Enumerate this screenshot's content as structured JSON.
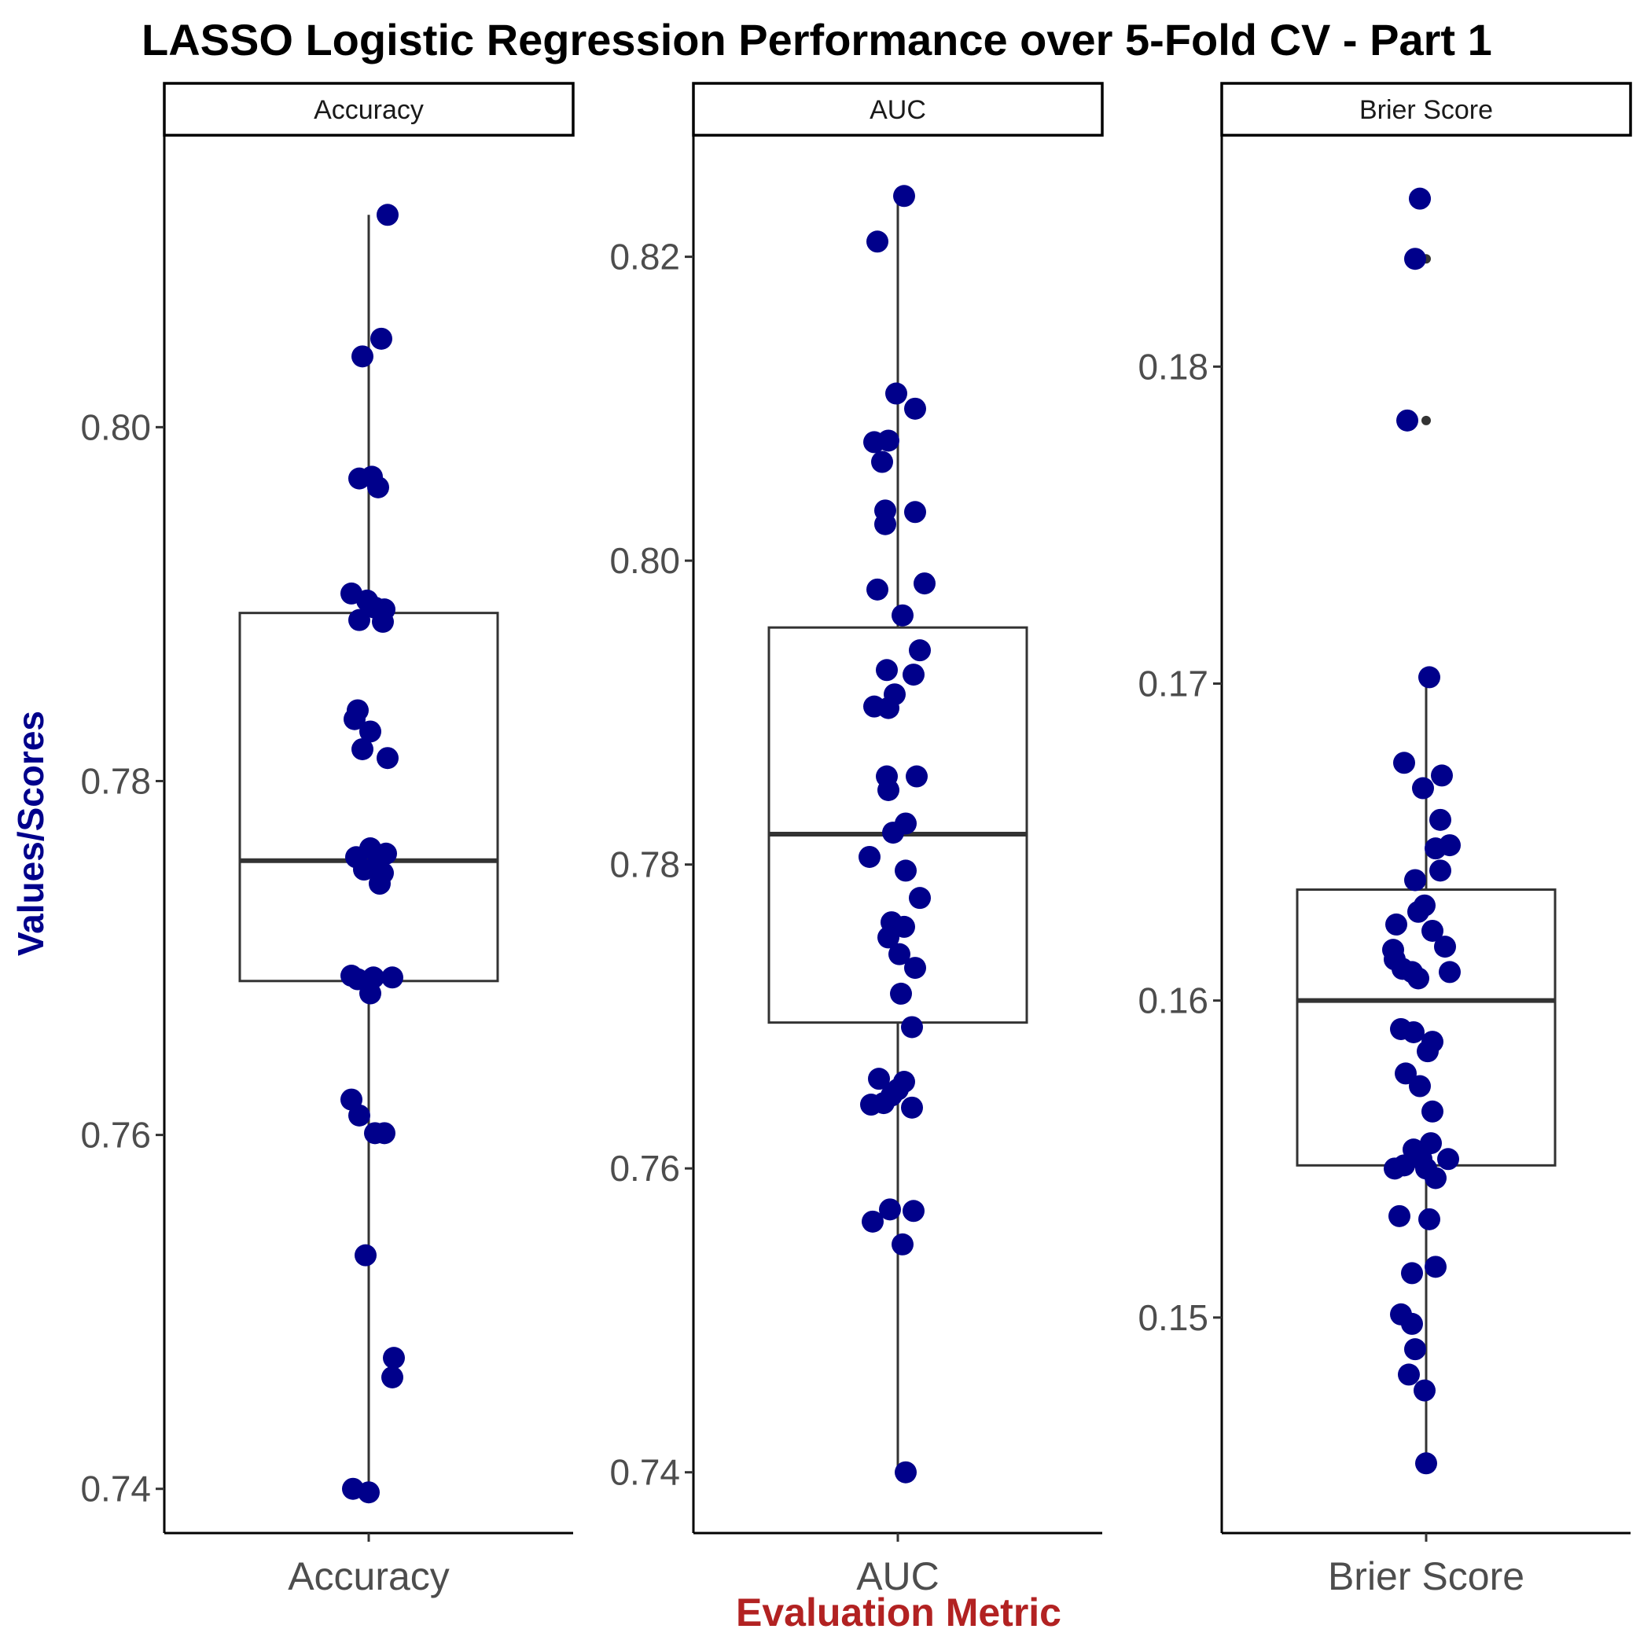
{
  "chart_data": {
    "type": "boxplot",
    "title": "LASSO Logistic Regression Performance over 5-Fold CV - Part 1",
    "xlabel": "Evaluation Metric",
    "ylabel": "Values/Scores",
    "colors": {
      "points": "#00008B",
      "ylabel": "#00008B",
      "xlabel": "#B22222",
      "box": "#333333"
    },
    "grid": false,
    "legend": "none",
    "facets": [
      {
        "label": "Accuracy",
        "xtick": "Accuracy",
        "ylim": [
          0.7375,
          0.8165
        ],
        "yticks": [
          0.74,
          0.76,
          0.78,
          0.8
        ],
        "ytick_labels": [
          "0.74",
          "0.76",
          "0.78",
          "0.80"
        ],
        "box": {
          "q1": 0.7687,
          "median": 0.7755,
          "q3": 0.7895,
          "whisker_low": 0.74,
          "whisker_high": 0.812
        },
        "outliers": [],
        "points": [
          [
            0.012,
            0.812
          ],
          [
            0.008,
            0.805
          ],
          [
            -0.004,
            0.804
          ],
          [
            0.002,
            0.7972
          ],
          [
            -0.006,
            0.7971
          ],
          [
            0.006,
            0.7966
          ],
          [
            -0.011,
            0.7906
          ],
          [
            -0.001,
            0.7902
          ],
          [
            0.004,
            0.7898
          ],
          [
            0.01,
            0.7897
          ],
          [
            -0.006,
            0.7891
          ],
          [
            0.009,
            0.789
          ],
          [
            -0.007,
            0.784
          ],
          [
            -0.009,
            0.7835
          ],
          [
            0.001,
            0.7828
          ],
          [
            -0.004,
            0.7818
          ],
          [
            0.012,
            0.7813
          ],
          [
            0.001,
            0.7762
          ],
          [
            -0.008,
            0.7757
          ],
          [
            0.011,
            0.7759
          ],
          [
            0.005,
            0.7752
          ],
          [
            -0.003,
            0.775
          ],
          [
            0.009,
            0.7748
          ],
          [
            0.007,
            0.7742
          ],
          [
            -0.011,
            0.769
          ],
          [
            -0.007,
            0.7688
          ],
          [
            0.003,
            0.7689
          ],
          [
            0.015,
            0.7689
          ],
          [
            0.001,
            0.768
          ],
          [
            -0.011,
            0.762
          ],
          [
            -0.006,
            0.7611
          ],
          [
            0.004,
            0.7601
          ],
          [
            0.01,
            0.7601
          ],
          [
            -0.002,
            0.7532
          ],
          [
            0.016,
            0.7474
          ],
          [
            0.015,
            0.7463
          ],
          [
            -0.01,
            0.74
          ],
          [
            0.0,
            0.7398
          ]
        ]
      },
      {
        "label": "AUC",
        "xtick": "AUC",
        "ylim": [
          0.736,
          0.828
        ],
        "yticks": [
          0.74,
          0.76,
          0.78,
          0.8,
          0.82
        ],
        "ytick_labels": [
          "0.74",
          "0.76",
          "0.78",
          "0.80",
          "0.82"
        ],
        "box": {
          "q1": 0.7696,
          "median": 0.782,
          "q3": 0.7956,
          "whisker_low": 0.74,
          "whisker_high": 0.824
        },
        "outliers": [],
        "points": [
          [
            0.004,
            0.824
          ],
          [
            -0.013,
            0.821
          ],
          [
            -0.001,
            0.811
          ],
          [
            0.011,
            0.81
          ],
          [
            -0.015,
            0.8078
          ],
          [
            -0.006,
            0.8079
          ],
          [
            -0.01,
            0.8065
          ],
          [
            -0.008,
            0.8033
          ],
          [
            0.011,
            0.8032
          ],
          [
            -0.008,
            0.8024
          ],
          [
            0.017,
            0.7985
          ],
          [
            -0.013,
            0.7981
          ],
          [
            0.003,
            0.7964
          ],
          [
            0.014,
            0.7941
          ],
          [
            0.01,
            0.7925
          ],
          [
            -0.007,
            0.7928
          ],
          [
            -0.002,
            0.7912
          ],
          [
            -0.015,
            0.7904
          ],
          [
            -0.006,
            0.7903
          ],
          [
            -0.007,
            0.7858
          ],
          [
            0.012,
            0.7858
          ],
          [
            -0.006,
            0.7849
          ],
          [
            0.005,
            0.7827
          ],
          [
            -0.003,
            0.7821
          ],
          [
            -0.018,
            0.7805
          ],
          [
            0.005,
            0.7796
          ],
          [
            0.014,
            0.7778
          ],
          [
            -0.004,
            0.7762
          ],
          [
            0.004,
            0.7759
          ],
          [
            -0.006,
            0.7752
          ],
          [
            0.001,
            0.7741
          ],
          [
            0.011,
            0.7732
          ],
          [
            0.002,
            0.7715
          ],
          [
            0.009,
            0.7693
          ],
          [
            -0.012,
            0.7659
          ],
          [
            0.0,
            0.7652
          ],
          [
            0.004,
            0.7657
          ],
          [
            -0.004,
            0.7648
          ],
          [
            -0.017,
            0.7642
          ],
          [
            -0.009,
            0.7643
          ],
          [
            0.009,
            0.764
          ],
          [
            -0.016,
            0.7565
          ],
          [
            -0.005,
            0.7573
          ],
          [
            0.01,
            0.7572
          ],
          [
            0.003,
            0.755
          ],
          [
            0.005,
            0.74
          ]
        ]
      },
      {
        "label": "Brier Score",
        "xtick": "Brier Score",
        "ylim": [
          0.1432,
          0.1873
        ],
        "yticks": [
          0.15,
          0.16,
          0.17,
          0.18
        ],
        "ytick_labels": [
          "0.15",
          "0.16",
          "0.17",
          "0.18"
        ],
        "box": {
          "q1": 0.1548,
          "median": 0.16,
          "q3": 0.1635,
          "whisker_low": 0.1454,
          "whisker_high": 0.1702
        },
        "outliers": [
          0.1853,
          0.1834,
          0.1783
        ],
        "points": [
          [
            -0.004,
            0.1853
          ],
          [
            -0.007,
            0.1834
          ],
          [
            -0.012,
            0.1783
          ],
          [
            0.002,
            0.1702
          ],
          [
            -0.014,
            0.1675
          ],
          [
            0.01,
            0.1671
          ],
          [
            -0.002,
            0.1667
          ],
          [
            0.009,
            0.1657
          ],
          [
            0.015,
            0.1649
          ],
          [
            0.006,
            0.1648
          ],
          [
            0.009,
            0.1641
          ],
          [
            -0.007,
            0.1638
          ],
          [
            -0.001,
            0.163
          ],
          [
            -0.005,
            0.1628
          ],
          [
            -0.019,
            0.1624
          ],
          [
            0.004,
            0.1622
          ],
          [
            0.012,
            0.1617
          ],
          [
            -0.021,
            0.1616
          ],
          [
            -0.02,
            0.1613
          ],
          [
            -0.015,
            0.161
          ],
          [
            -0.009,
            0.1609
          ],
          [
            -0.005,
            0.1607
          ],
          [
            0.015,
            0.1609
          ],
          [
            -0.016,
            0.1591
          ],
          [
            -0.008,
            0.159
          ],
          [
            0.004,
            0.1587
          ],
          [
            0.001,
            0.1584
          ],
          [
            -0.013,
            0.1577
          ],
          [
            -0.004,
            0.1573
          ],
          [
            0.004,
            0.1565
          ],
          [
            0.003,
            0.1555
          ],
          [
            -0.008,
            0.1553
          ],
          [
            0.014,
            0.155
          ],
          [
            -0.02,
            0.1547
          ],
          [
            -0.014,
            0.1548
          ],
          [
            -0.003,
            0.155
          ],
          [
            0.0,
            0.1547
          ],
          [
            0.006,
            0.1544
          ],
          [
            -0.017,
            0.1532
          ],
          [
            0.002,
            0.1531
          ],
          [
            0.006,
            0.1516
          ],
          [
            -0.009,
            0.1514
          ],
          [
            -0.016,
            0.1501
          ],
          [
            -0.009,
            0.1498
          ],
          [
            -0.007,
            0.149
          ],
          [
            -0.011,
            0.1482
          ],
          [
            -0.001,
            0.1477
          ],
          [
            0.0,
            0.1454
          ]
        ]
      }
    ]
  }
}
